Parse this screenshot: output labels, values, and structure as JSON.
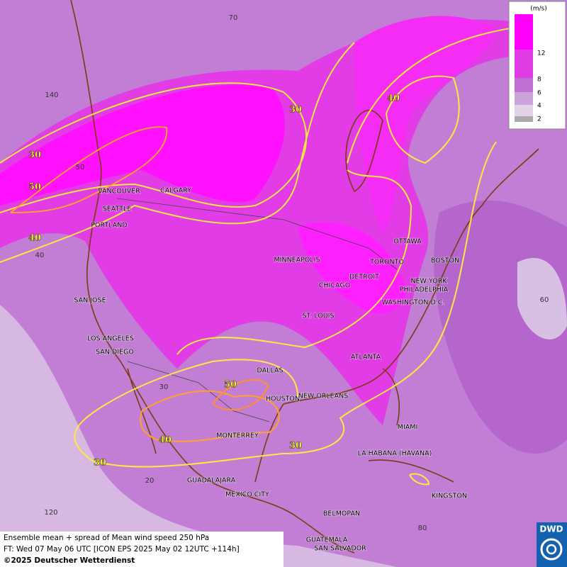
{
  "title": "Ensemble mean + spread of Mean wind speed 250 hPa",
  "forecast_time": "FT: Wed 07 May 06 UTC [ICON EPS 2025 May 02 12UTC +114h]",
  "copyright": "©2025 Deutscher Wetterdienst",
  "logo": "DWD",
  "legend": {
    "unit": "(m/s)",
    "levels": [
      2,
      4,
      6,
      8,
      12
    ]
  },
  "cities": [
    "VANCOUVER",
    "CALGARY",
    "SEATTLE",
    "PORTLAND",
    "MINNEAPOLIS",
    "OTTAWA",
    "TORONTO",
    "BOSTON",
    "DETROIT",
    "CHICAGO",
    "NEW YORK",
    "PHILADELPHIA",
    "WASHINGTON D.C.",
    "SAN JOSE",
    "ST. LOUIS",
    "LOS ANGELES",
    "SAN DIEGO",
    "ATLANTA",
    "DALLAS",
    "HOUSTON",
    "NEW ORLEANS",
    "MIAMI",
    "MONTERREY",
    "LA HABANA (HAVANA)",
    "GUADALAJARA",
    "MEXICO CITY",
    "KINGSTON",
    "BELMOPAN",
    "GUATEMALA",
    "SAN SALVADOR"
  ],
  "contour_labels": [
    30,
    40,
    30,
    50,
    40,
    50,
    40,
    30,
    30
  ],
  "grid_labels": [
    70,
    140,
    50,
    40,
    60,
    30,
    20,
    120,
    80
  ]
}
